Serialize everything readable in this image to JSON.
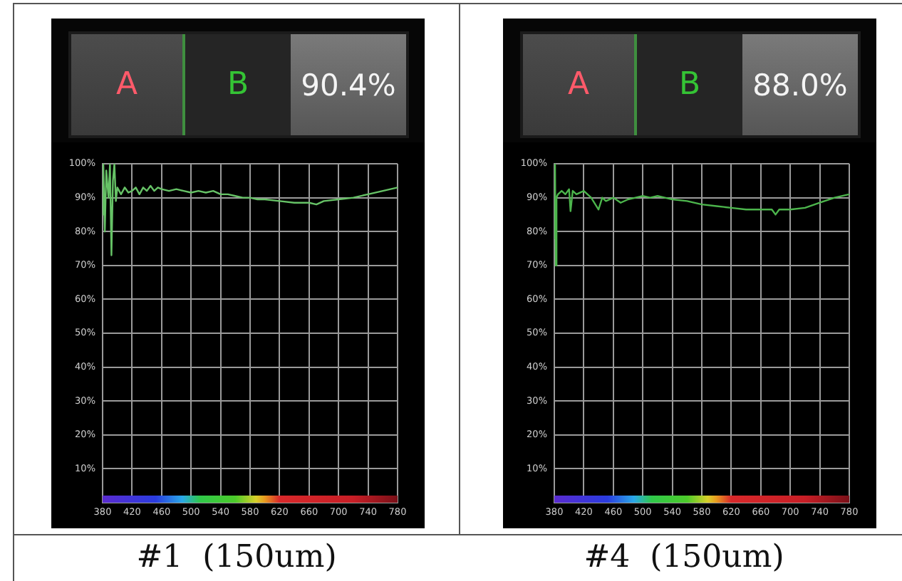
{
  "chart_data": [
    {
      "type": "line",
      "title": "#1  (150um)",
      "annotations": [
        "A",
        "B",
        "90.4%"
      ],
      "x": [
        380,
        381,
        383,
        385,
        388,
        390,
        392,
        394,
        396,
        398,
        400,
        405,
        410,
        415,
        420,
        425,
        430,
        435,
        440,
        445,
        450,
        455,
        460,
        470,
        480,
        490,
        500,
        510,
        520,
        530,
        540,
        550,
        560,
        570,
        580,
        590,
        600,
        620,
        640,
        660,
        670,
        680,
        700,
        720,
        740,
        760,
        780
      ],
      "series": [
        {
          "color": "#66c266",
          "values": [
            85,
            100,
            80,
            98,
            90,
            100,
            73,
            95,
            100,
            89,
            93,
            91,
            93,
            91.5,
            92,
            93,
            91,
            93,
            92,
            93.5,
            92,
            93,
            92.5,
            92,
            92.5,
            92,
            91.5,
            92,
            91.5,
            92,
            91,
            91,
            90.5,
            90,
            90,
            89.5,
            89.5,
            89,
            88.5,
            88.5,
            88,
            89,
            89.5,
            90,
            91,
            92,
            93
          ]
        }
      ],
      "xlim": [
        380,
        780
      ],
      "xticks": [
        380,
        420,
        460,
        500,
        540,
        580,
        620,
        660,
        700,
        740,
        780
      ],
      "ylim": [
        0,
        100
      ],
      "yticks": [
        {
          "value": 10,
          "label": "10%"
        },
        {
          "value": 20,
          "label": "20%"
        },
        {
          "value": 30,
          "label": "30%"
        },
        {
          "value": 40,
          "label": "40%"
        },
        {
          "value": 50,
          "label": "50%"
        },
        {
          "value": 60,
          "label": "60%"
        },
        {
          "value": 70,
          "label": "70%"
        },
        {
          "value": 80,
          "label": "80%"
        },
        {
          "value": 90,
          "label": "90%"
        },
        {
          "value": 100,
          "label": "100%"
        }
      ],
      "grid": true
    },
    {
      "type": "line",
      "title": "#4  (150um)",
      "annotations": [
        "A",
        "B",
        "88.0%"
      ],
      "x": [
        380,
        381,
        382,
        383,
        385,
        390,
        395,
        400,
        402,
        405,
        410,
        420,
        425,
        430,
        440,
        445,
        450,
        460,
        470,
        480,
        490,
        500,
        510,
        520,
        530,
        540,
        560,
        580,
        600,
        620,
        640,
        660,
        675,
        680,
        685,
        700,
        720,
        740,
        760,
        780
      ],
      "series": [
        {
          "color": "#4cb54c",
          "values": [
            78,
            100,
            70,
            90,
            91,
            92,
            91,
            92.5,
            86,
            92,
            91,
            92,
            91,
            90,
            86.5,
            90,
            89,
            90,
            88.5,
            89.5,
            90,
            90.5,
            90,
            90.5,
            90,
            89.5,
            89,
            88,
            87.5,
            87,
            86.5,
            86.5,
            86.5,
            85,
            86.5,
            86.5,
            87,
            88.5,
            90,
            91
          ]
        }
      ],
      "xlim": [
        380,
        780
      ],
      "xticks": [
        380,
        420,
        460,
        500,
        540,
        580,
        620,
        660,
        700,
        740,
        780
      ],
      "ylim": [
        0,
        100
      ],
      "yticks": [
        {
          "value": 10,
          "label": "10%"
        },
        {
          "value": 20,
          "label": "20%"
        },
        {
          "value": 30,
          "label": "30%"
        },
        {
          "value": 40,
          "label": "40%"
        },
        {
          "value": 50,
          "label": "50%"
        },
        {
          "value": 60,
          "label": "60%"
        },
        {
          "value": 70,
          "label": "70%"
        },
        {
          "value": 80,
          "label": "80%"
        },
        {
          "value": 90,
          "label": "90%"
        },
        {
          "value": 100,
          "label": "100%"
        }
      ],
      "grid": true
    }
  ]
}
